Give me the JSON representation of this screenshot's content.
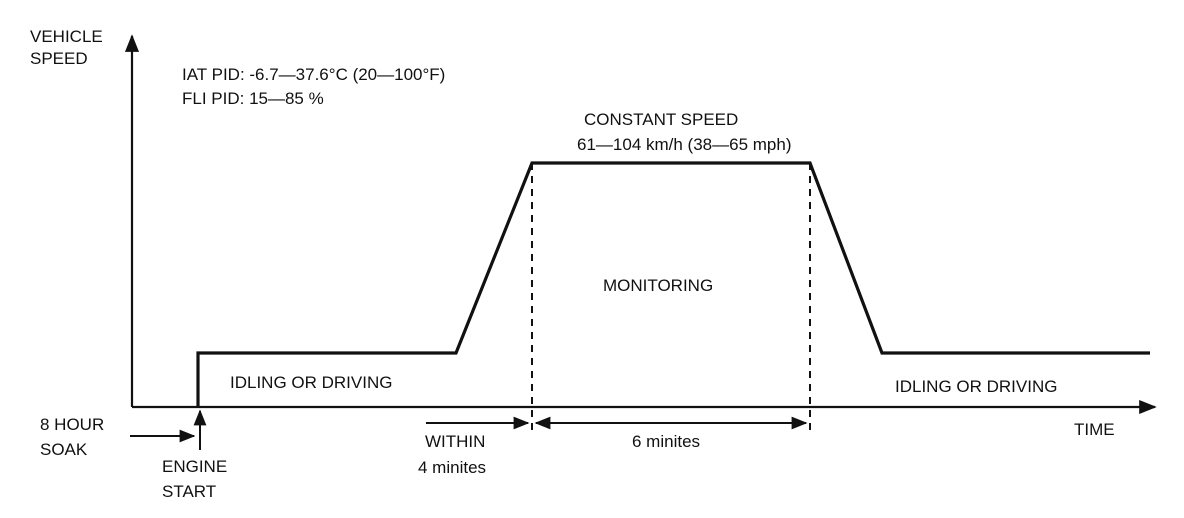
{
  "diagram": {
    "axis_y_label_line1": "VEHICLE",
    "axis_y_label_line2": "SPEED",
    "axis_x_label": "TIME",
    "iat_pid": "IAT PID: -6.7—37.6°C (20—100°F)",
    "fli_pid": "FLI PID: 15—85 %",
    "constant_speed_title": "CONSTANT SPEED",
    "constant_speed_range": "61—104 km/h (38—65 mph)",
    "monitoring": "MONITORING",
    "idle_left": "IDLING OR DRIVING",
    "idle_right": "IDLING OR DRIVING",
    "soak_line1": "8 HOUR",
    "soak_line2": "SOAK",
    "engine_start_line1": "ENGINE",
    "engine_start_line2": "START",
    "within_line1": "WITHIN",
    "within_line2": "4 minites",
    "duration": "6 minites"
  },
  "colors": {
    "ink": "#111111",
    "background": "#ffffff"
  }
}
